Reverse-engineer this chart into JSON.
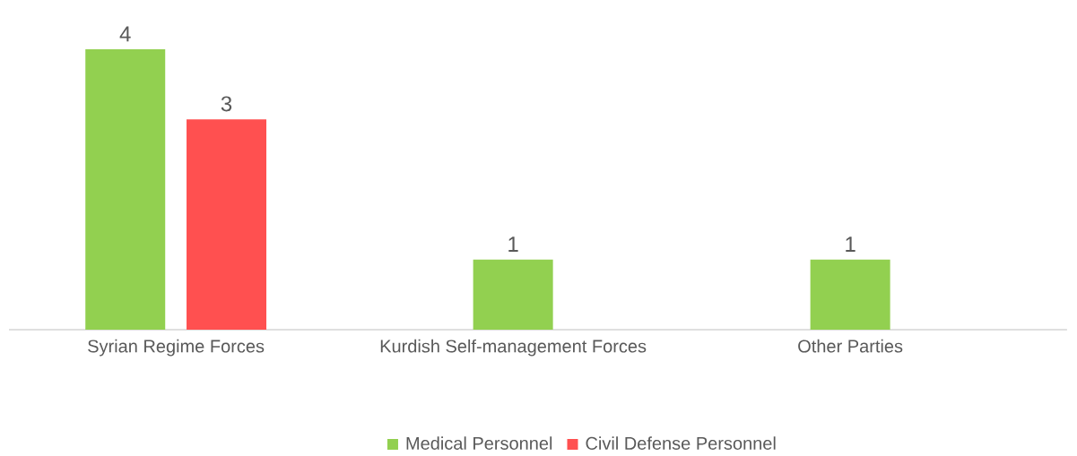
{
  "chart_data": {
    "type": "bar",
    "categories": [
      "Syrian Regime Forces",
      "Kurdish Self-management Forces",
      "Other Parties"
    ],
    "series": [
      {
        "name": "Medical Personnel",
        "color": "#92d050",
        "values": [
          4,
          1,
          1
        ]
      },
      {
        "name": "Civil Defense Personnel",
        "color": "#ff5050",
        "values": [
          3,
          null,
          null
        ]
      }
    ],
    "data_labels": true,
    "legend": "bottom"
  }
}
